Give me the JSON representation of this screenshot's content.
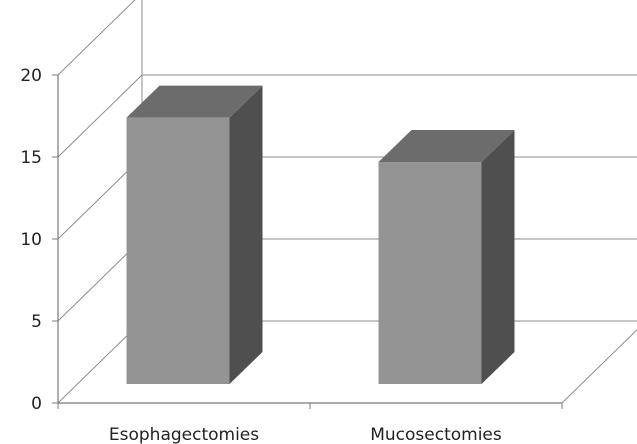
{
  "chart_data": {
    "type": "bar",
    "categories": [
      "Esophagectomies",
      "Mucosectomies"
    ],
    "values": [
      18,
      15
    ],
    "ylim": [
      0,
      20
    ],
    "yticks": [
      "0",
      "5",
      "10",
      "15",
      "20"
    ],
    "grid": true,
    "legend": "none",
    "title": "",
    "xlabel": "",
    "ylabel": "",
    "colors": {
      "bar_front": "#949494",
      "bar_top": "#6c6c6c",
      "bar_side": "#4f4f4f",
      "grid": "#8c8c8c",
      "axis": "#7a7a7a"
    }
  }
}
